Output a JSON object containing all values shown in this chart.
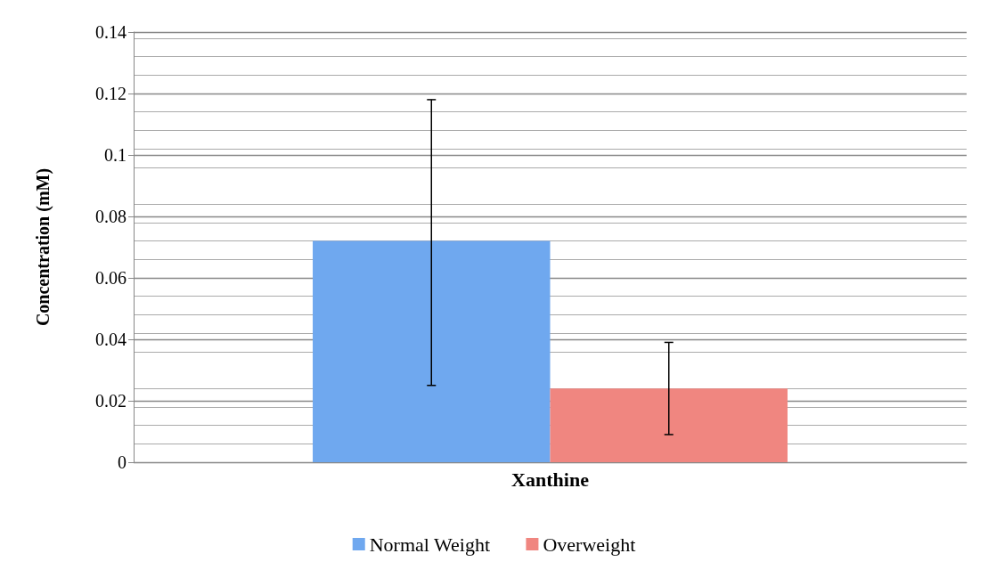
{
  "chart_data": {
    "type": "bar",
    "ylabel": "Concentration (mM)",
    "categories": [
      "Xanthine"
    ],
    "series": [
      {
        "name": "Normal Weight",
        "color": "#6fa8ef",
        "values": [
          0.072
        ],
        "errors": [
          [
            0.025,
            0.118
          ]
        ]
      },
      {
        "name": "Overweight",
        "color": "#f08680",
        "values": [
          0.024
        ],
        "errors": [
          [
            0.009,
            0.039
          ]
        ]
      }
    ],
    "ylim": [
      0,
      0.14
    ],
    "yticks": [
      0,
      0.02,
      0.04,
      0.06,
      0.08,
      0.1,
      0.12,
      0.14
    ],
    "grid": "y",
    "legend": "bottom"
  }
}
